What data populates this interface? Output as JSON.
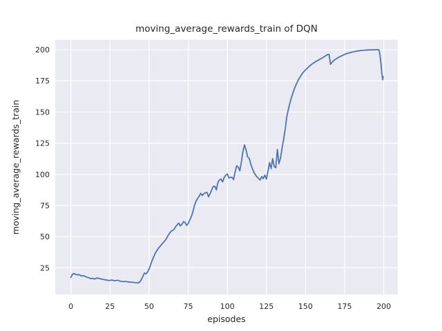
{
  "chart_data": {
    "type": "line",
    "title": "moving_average_rewards_train of DQN",
    "xlabel": "episodes",
    "ylabel": "moving_average_rewards_train",
    "xticks": [
      0,
      25,
      50,
      75,
      100,
      125,
      150,
      175,
      200
    ],
    "yticks": [
      25,
      50,
      75,
      100,
      125,
      150,
      175,
      200
    ],
    "xlim": [
      -10,
      209
    ],
    "ylim": [
      3.5,
      208
    ],
    "grid": true,
    "legend_position": "none",
    "plot_background_color": "#eaeaf2",
    "grid_color": "#ffffff",
    "figure_background_color": "#ffffff",
    "text_color": "#262626",
    "series": [
      {
        "name": "moving_average_rewards_train",
        "color": "#4c72b0",
        "line_width": 1.8,
        "x": [
          0,
          1,
          2,
          3,
          4,
          5,
          6,
          7,
          8,
          9,
          10,
          11,
          12,
          13,
          14,
          15,
          16,
          17,
          18,
          19,
          20,
          21,
          22,
          23,
          24,
          25,
          26,
          27,
          28,
          29,
          30,
          31,
          32,
          33,
          34,
          35,
          36,
          37,
          38,
          39,
          40,
          41,
          42,
          43,
          44,
          45,
          46,
          47,
          48,
          49,
          50,
          51,
          52,
          53,
          54,
          55,
          56,
          57,
          58,
          59,
          60,
          61,
          62,
          63,
          64,
          65,
          66,
          67,
          68,
          69,
          70,
          71,
          72,
          73,
          74,
          75,
          76,
          77,
          78,
          79,
          80,
          81,
          82,
          83,
          84,
          85,
          86,
          87,
          88,
          89,
          90,
          91,
          92,
          93,
          94,
          95,
          96,
          97,
          98,
          99,
          100,
          101,
          102,
          103,
          104,
          105,
          106,
          107,
          108,
          109,
          110,
          111,
          112,
          113,
          114,
          115,
          116,
          117,
          118,
          119,
          120,
          121,
          122,
          123,
          124,
          125,
          126,
          127,
          128,
          129,
          130,
          131,
          132,
          133,
          134,
          135,
          136,
          137,
          138,
          139,
          140,
          141,
          142,
          143,
          144,
          145,
          146,
          147,
          148,
          149,
          150,
          151,
          152,
          153,
          154,
          155,
          156,
          157,
          158,
          159,
          160,
          161,
          162,
          163,
          164,
          165,
          166,
          167,
          168,
          169,
          170,
          171,
          172,
          173,
          174,
          175,
          176,
          177,
          178,
          179,
          180,
          181,
          182,
          183,
          184,
          185,
          186,
          187,
          188,
          189,
          190,
          191,
          192,
          193,
          194,
          195,
          196,
          197,
          197.7,
          198.3,
          198.8,
          199.2,
          199.4,
          199.6
        ],
        "y": [
          17.3,
          19.8,
          20.4,
          19.7,
          19.3,
          19.6,
          18.9,
          18.4,
          18.7,
          18.1,
          17.6,
          17.2,
          16.7,
          16.3,
          16.6,
          16.0,
          16.4,
          16.9,
          16.4,
          16.1,
          15.9,
          15.6,
          15.4,
          15.1,
          14.9,
          14.8,
          15.2,
          14.9,
          14.6,
          14.8,
          15.0,
          14.5,
          14.2,
          14.0,
          13.9,
          14.1,
          13.8,
          13.6,
          13.5,
          13.4,
          13.3,
          13.1,
          13.0,
          12.8,
          13.6,
          15.5,
          18.0,
          20.8,
          20.2,
          21.6,
          24.0,
          27.5,
          31.0,
          34.0,
          36.8,
          38.8,
          40.8,
          42.2,
          43.6,
          45.2,
          46.6,
          48.2,
          50.6,
          52.6,
          54.2,
          55.0,
          56.0,
          58.0,
          59.6,
          60.8,
          58.6,
          60.0,
          62.0,
          61.4,
          59.0,
          60.5,
          63.5,
          66.0,
          70.0,
          75.0,
          78.5,
          80.5,
          82.5,
          84.8,
          83.0,
          84.5,
          85.2,
          85.5,
          82.0,
          84.5,
          87.5,
          90.2,
          90.5,
          87.5,
          93.5,
          95.5,
          96.2,
          94.0,
          97.5,
          99.2,
          100.3,
          97.2,
          97.5,
          97.6,
          95.8,
          102.0,
          106.8,
          105.8,
          102.8,
          110.0,
          118.5,
          123.6,
          119.5,
          114.0,
          112.8,
          108.2,
          104.6,
          101.6,
          99.6,
          98.0,
          96.5,
          95.4,
          98.2,
          96.6,
          99.4,
          96.2,
          102.6,
          109.4,
          104.6,
          112.6,
          106.2,
          105.3,
          120.0,
          108.5,
          113.0,
          121.0,
          128.0,
          136.0,
          146.0,
          152.0,
          157.0,
          161.5,
          165.5,
          169.0,
          172.0,
          174.8,
          177.0,
          179.0,
          181.0,
          182.5,
          183.8,
          185.0,
          186.2,
          187.3,
          188.3,
          189.2,
          190.0,
          190.8,
          191.5,
          192.2,
          192.9,
          193.6,
          194.4,
          195.2,
          196.0,
          196.3,
          188.3,
          190.0,
          191.2,
          192.2,
          193.0,
          193.8,
          194.4,
          195.0,
          195.6,
          196.2,
          196.7,
          197.1,
          197.5,
          197.8,
          198.1,
          198.4,
          198.7,
          198.9,
          199.1,
          199.3,
          199.4,
          199.5,
          199.6,
          199.7,
          199.8,
          199.85,
          199.9,
          199.9,
          199.9,
          199.95,
          200.0,
          199.9,
          195.0,
          188.0,
          181.0,
          177.5,
          175.8,
          178.5
        ]
      }
    ]
  }
}
